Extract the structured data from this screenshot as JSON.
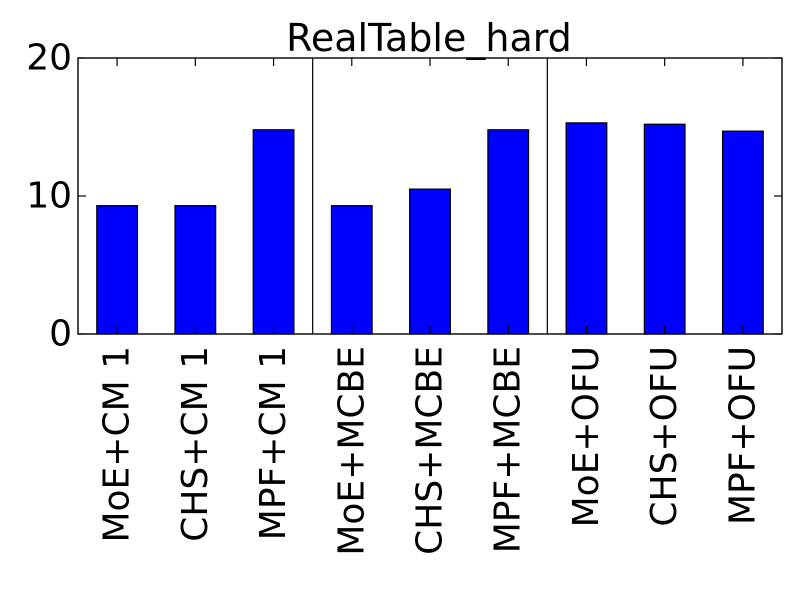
{
  "chart_data": {
    "type": "bar",
    "title": "RealTable_hard",
    "xlabel": "",
    "ylabel": "",
    "ylim": [
      0,
      20
    ],
    "yticks": [
      0,
      10,
      20
    ],
    "yticklabels": [
      "0",
      "10",
      "20"
    ],
    "grid": false,
    "categories": [
      "MoE+CM 1",
      "CHS+CM 1",
      "MPF+CM 1",
      "MoE+MCBE",
      "CHS+MCBE",
      "MPF+MCBE",
      "MoE+OFU",
      "CHS+OFU",
      "MPF+OFU"
    ],
    "values": [
      9.3,
      9.3,
      14.8,
      9.3,
      10.5,
      14.8,
      15.3,
      15.2,
      14.7
    ],
    "group_size": 3,
    "colors": {
      "bar_fill": "#0000ff",
      "bar_edge": "#000000",
      "axes": "#000000",
      "background": "#ffffff"
    }
  }
}
